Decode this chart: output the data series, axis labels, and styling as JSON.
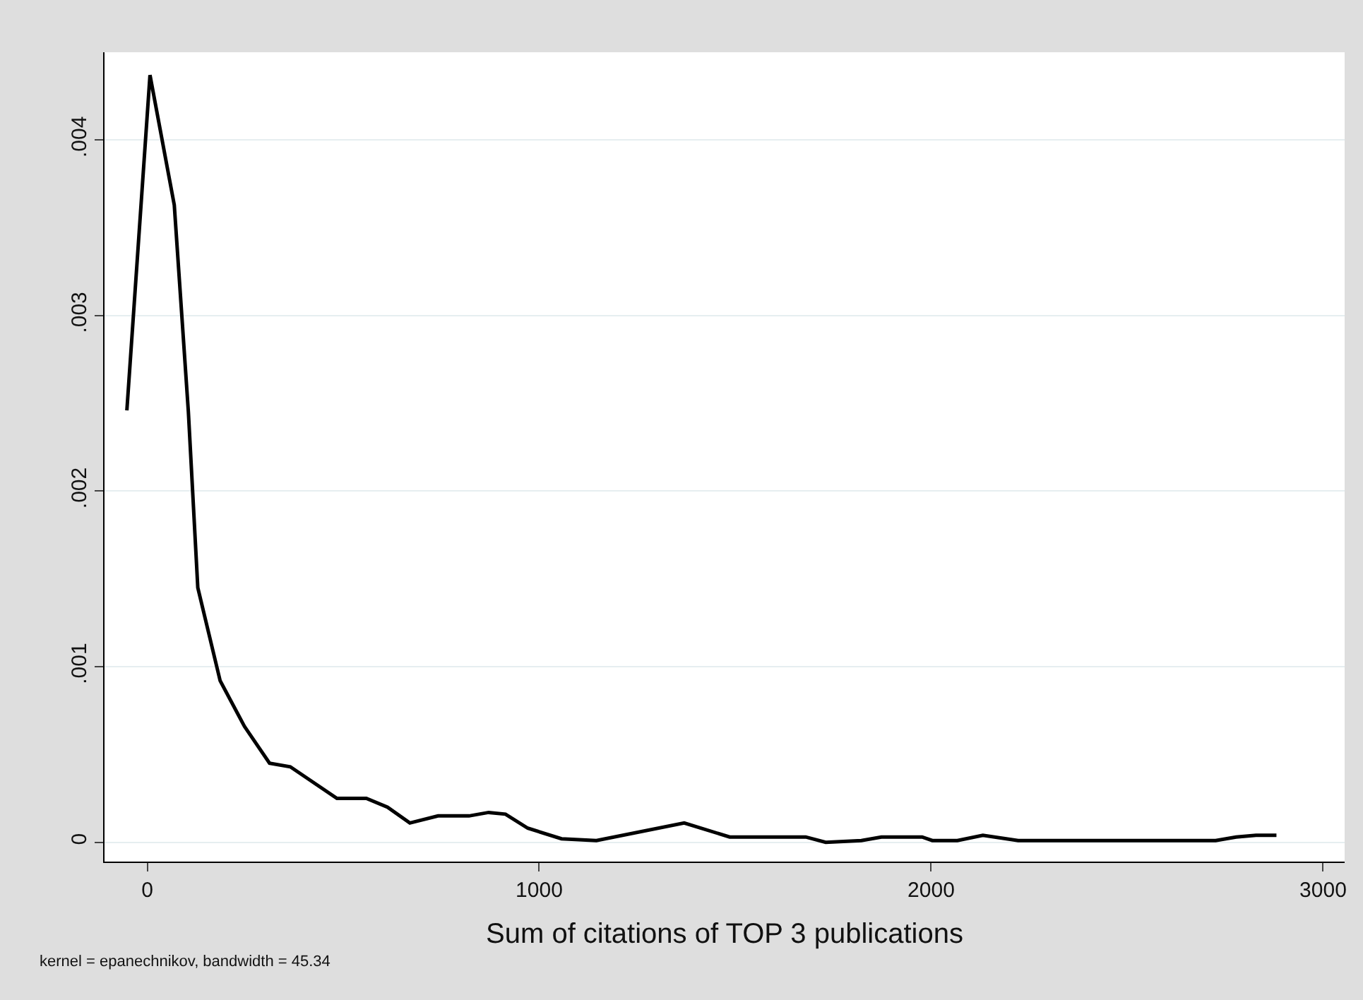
{
  "chart_data": {
    "type": "line",
    "xlabel": "Sum of citations of TOP 3 publications",
    "annotations": [
      "kernel = epanechnikov, bandwidth = 45.34"
    ],
    "x": [
      -52,
      7,
      69,
      105,
      129,
      186,
      248,
      312,
      365,
      484,
      559,
      613,
      670,
      742,
      821,
      871,
      914,
      971,
      1057,
      1146,
      1370,
      1486,
      1680,
      1731,
      1822,
      1873,
      1977,
      2003,
      2067,
      2132,
      2222,
      2726,
      2778,
      2829,
      2881
    ],
    "series": [
      {
        "color": "#000000",
        "values": [
          0.00246,
          0.00437,
          0.00363,
          0.00245,
          0.00145,
          0.00092,
          0.00066,
          0.00045,
          0.00043,
          0.00025,
          0.00025,
          0.0002,
          0.00011,
          0.00015,
          0.00015,
          0.00017,
          0.00016,
          8e-05,
          2e-05,
          1e-05,
          0.00011,
          3e-05,
          3e-05,
          0.0,
          1e-05,
          3e-05,
          3e-05,
          1e-05,
          1e-05,
          4e-05,
          1e-05,
          1e-05,
          3e-05,
          4e-05,
          4e-05
        ]
      }
    ],
    "xlim": [
      -109,
      3055
    ],
    "ylim": [
      -0.00011,
      0.0045
    ],
    "xticks": [
      0,
      1000,
      2000,
      3000
    ],
    "yticks": [
      0,
      {
        "value": 0.001,
        "label": ".001"
      },
      {
        "value": 0.002,
        "label": ".002"
      },
      {
        "value": 0.003,
        "label": ".003"
      },
      {
        "value": 0.004,
        "label": ".004"
      }
    ],
    "grid": "y",
    "marker": "none",
    "line_style": "solid"
  }
}
